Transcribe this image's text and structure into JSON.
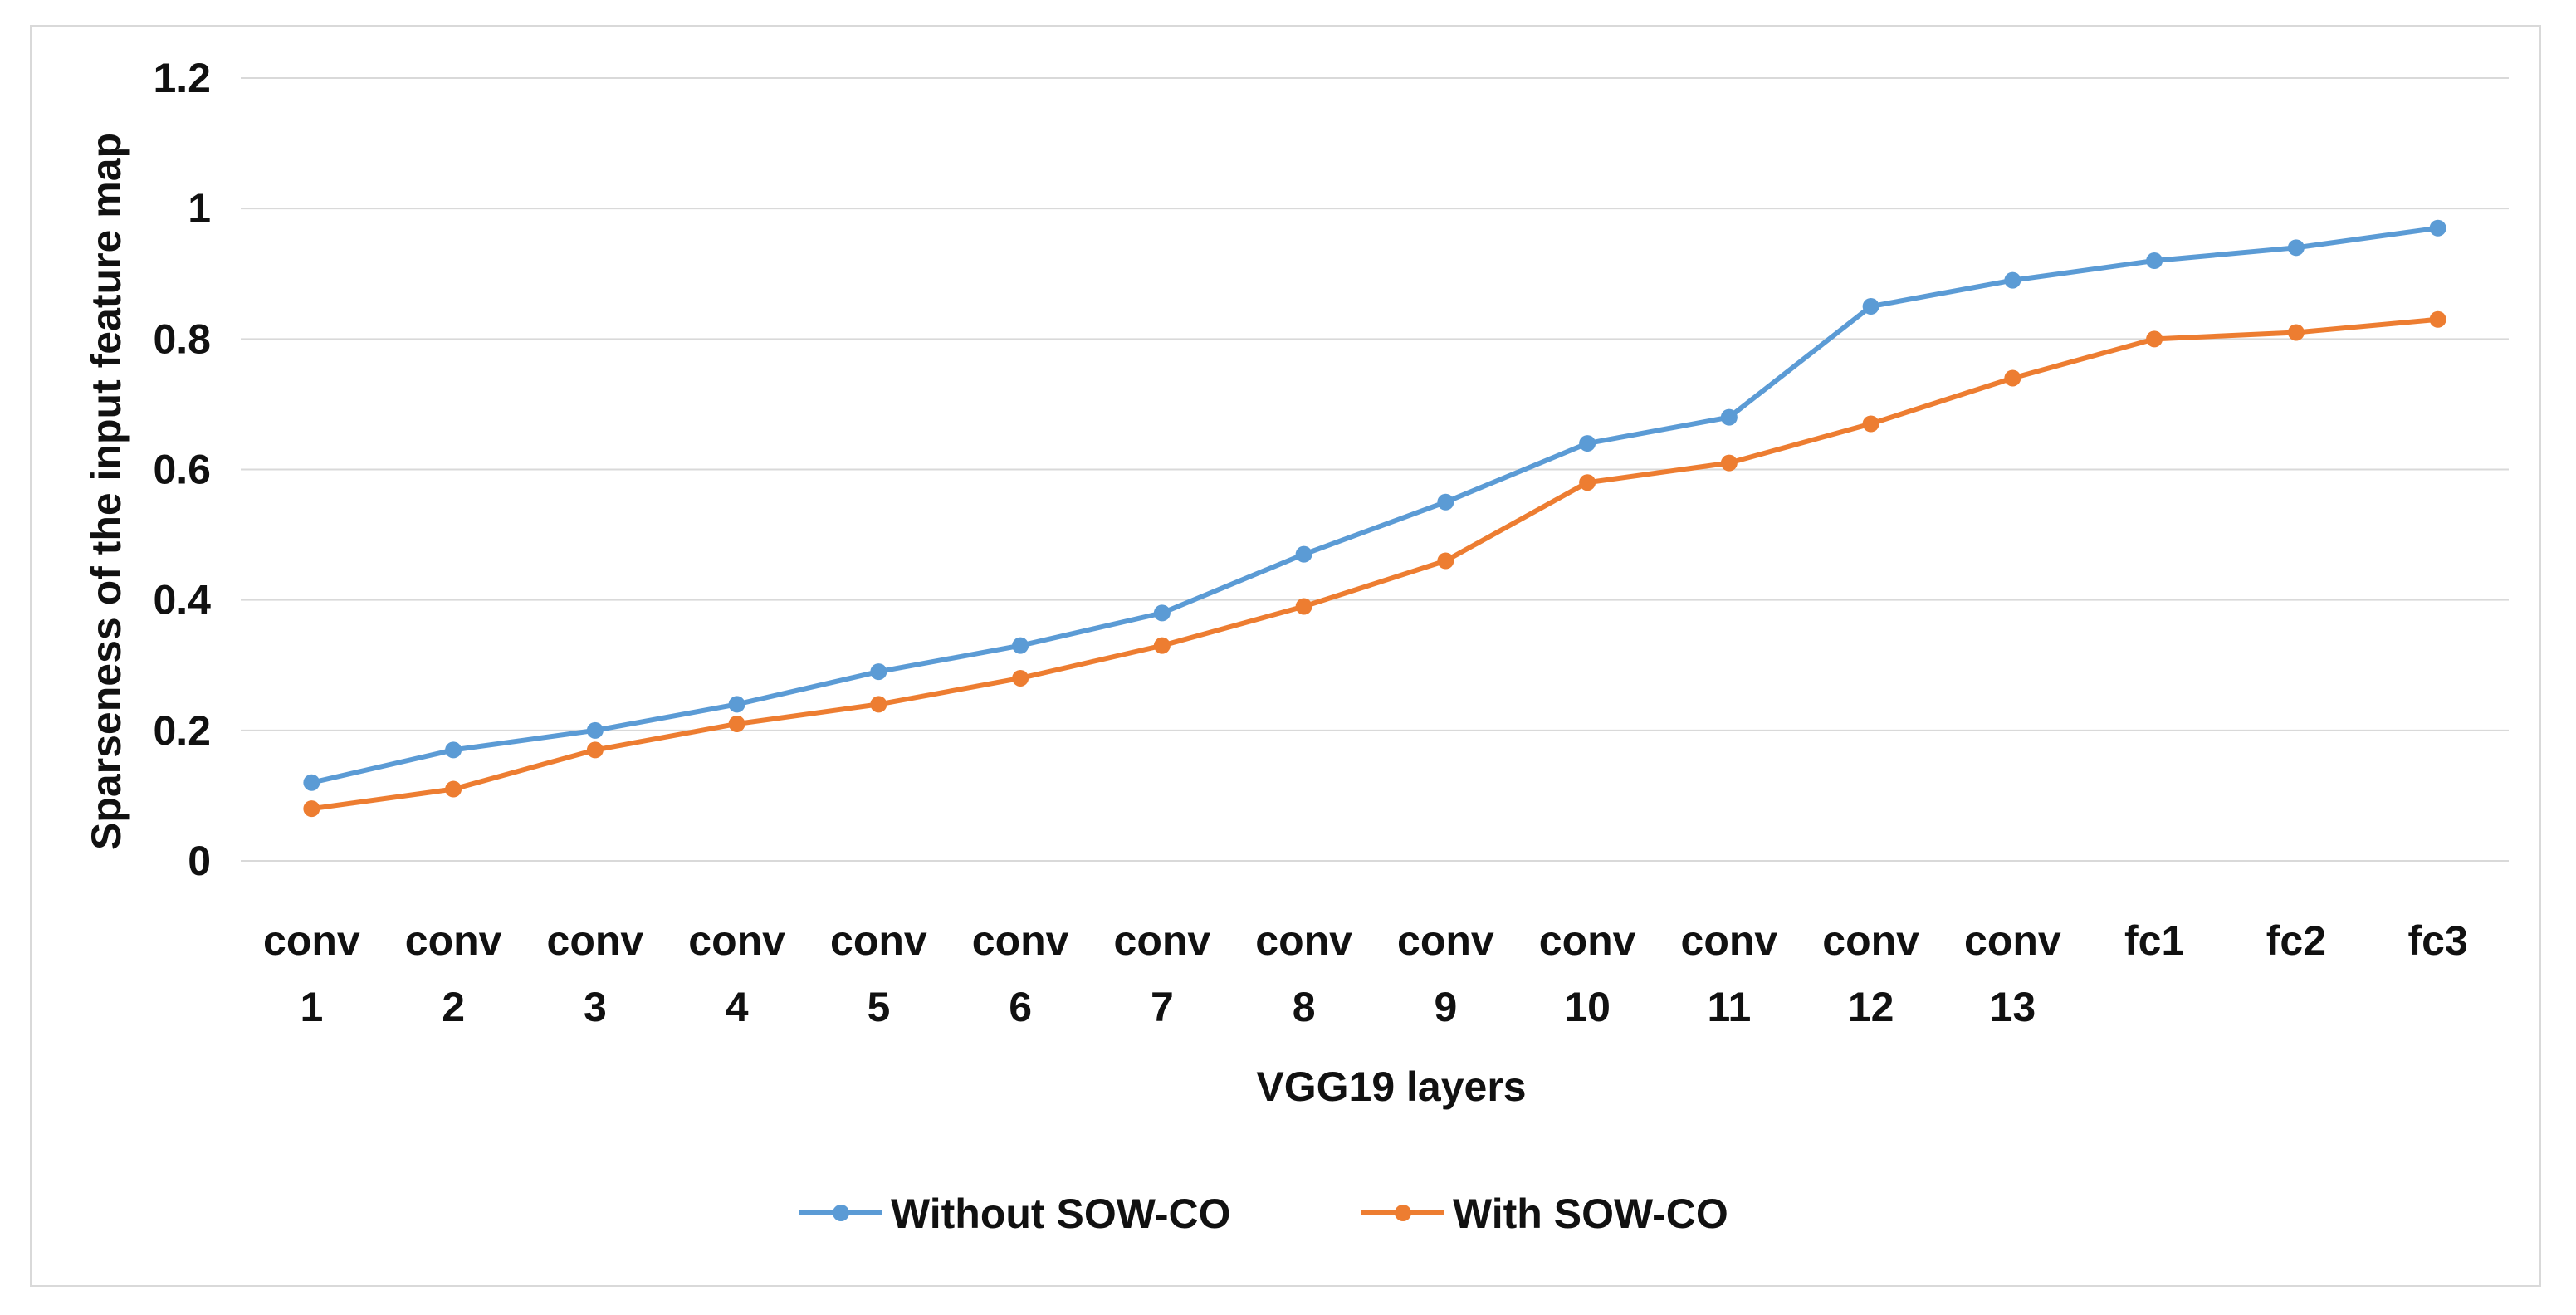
{
  "chart_data": {
    "type": "line",
    "title": "",
    "xlabel": "VGG19 layers",
    "ylabel": "Sparseness of the input feature map",
    "ylim": [
      0,
      1.2
    ],
    "yticks": [
      "0",
      "0.2",
      "0.4",
      "0.6",
      "0.8",
      "1",
      "1.2"
    ],
    "grid": true,
    "legend_position": "bottom",
    "categories": [
      [
        "conv",
        "1"
      ],
      [
        "conv",
        "2"
      ],
      [
        "conv",
        "3"
      ],
      [
        "conv",
        "4"
      ],
      [
        "conv",
        "5"
      ],
      [
        "conv",
        "6"
      ],
      [
        "conv",
        "7"
      ],
      [
        "conv",
        "8"
      ],
      [
        "conv",
        "9"
      ],
      [
        "conv",
        "10"
      ],
      [
        "conv",
        "11"
      ],
      [
        "conv",
        "12"
      ],
      [
        "conv",
        "13"
      ],
      [
        "fc1"
      ],
      [
        "fc2"
      ],
      [
        "fc3"
      ]
    ],
    "series": [
      {
        "name": "Without SOW-CO",
        "color": "#5B9BD5",
        "values": [
          0.12,
          0.17,
          0.2,
          0.24,
          0.29,
          0.33,
          0.38,
          0.47,
          0.55,
          0.64,
          0.68,
          0.85,
          0.89,
          0.92,
          0.94,
          0.97
        ]
      },
      {
        "name": "With SOW-CO",
        "color": "#ED7D31",
        "values": [
          0.08,
          0.11,
          0.17,
          0.21,
          0.24,
          0.28,
          0.33,
          0.39,
          0.46,
          0.58,
          0.61,
          0.67,
          0.74,
          0.8,
          0.81,
          0.83
        ]
      }
    ]
  }
}
